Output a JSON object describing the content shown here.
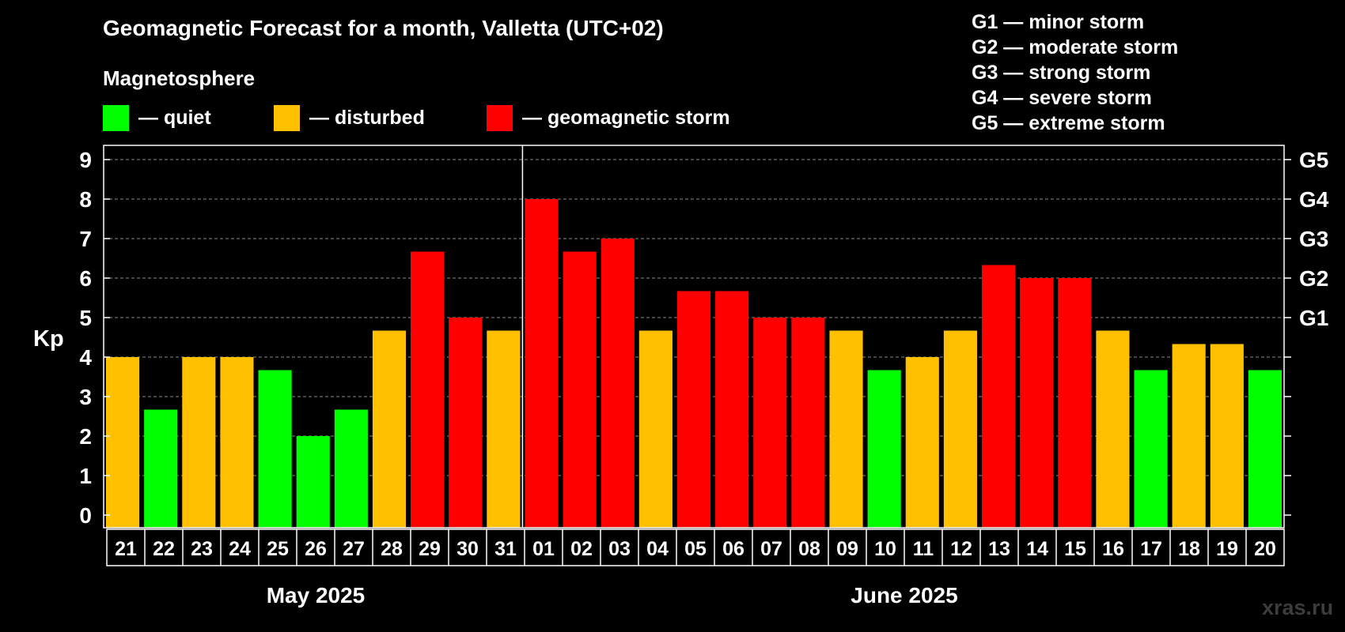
{
  "chart_data": {
    "type": "bar",
    "title": "Geomagnetic Forecast for a month, Valletta (UTC+02)",
    "subtitle": "Magnetosphere",
    "ylabel": "Kp",
    "ylim": [
      0,
      9
    ],
    "yticks": [
      "0",
      "1",
      "2",
      "3",
      "4",
      "5",
      "6",
      "7",
      "8",
      "9"
    ],
    "right_ticks": [
      {
        "kp": 5,
        "label": "G1"
      },
      {
        "kp": 6,
        "label": "G2"
      },
      {
        "kp": 7,
        "label": "G3"
      },
      {
        "kp": 8,
        "label": "G4"
      },
      {
        "kp": 9,
        "label": "G5"
      }
    ],
    "grid": true,
    "categories": [
      "21",
      "22",
      "23",
      "24",
      "25",
      "26",
      "27",
      "28",
      "29",
      "30",
      "31",
      "01",
      "02",
      "03",
      "04",
      "05",
      "06",
      "07",
      "08",
      "09",
      "10",
      "11",
      "12",
      "13",
      "14",
      "15",
      "16",
      "17",
      "18",
      "19",
      "20"
    ],
    "values": [
      4,
      2.67,
      4,
      4,
      3.67,
      2,
      2.67,
      4.67,
      6.67,
      5,
      4.67,
      8,
      6.67,
      7,
      4.67,
      5.67,
      5.67,
      5,
      5,
      4.67,
      3.67,
      4,
      4.67,
      6.33,
      6,
      6,
      4.67,
      3.67,
      4.33,
      4.33,
      3.67
    ],
    "levels": [
      "disturbed",
      "quiet",
      "disturbed",
      "disturbed",
      "quiet",
      "quiet",
      "quiet",
      "disturbed",
      "storm",
      "storm",
      "disturbed",
      "storm",
      "storm",
      "storm",
      "disturbed",
      "storm",
      "storm",
      "storm",
      "storm",
      "disturbed",
      "quiet",
      "disturbed",
      "disturbed",
      "storm",
      "storm",
      "storm",
      "disturbed",
      "quiet",
      "disturbed",
      "disturbed",
      "quiet"
    ],
    "months": [
      {
        "label": "May 2025",
        "days": 11
      },
      {
        "label": "June 2025",
        "days": 20
      }
    ],
    "legend": [
      {
        "key": "quiet",
        "label": "— quiet",
        "color": "#00ff00"
      },
      {
        "key": "disturbed",
        "label": "— disturbed",
        "color": "#ffc000"
      },
      {
        "key": "storm",
        "label": "— geomagnetic storm",
        "color": "#ff0000"
      }
    ],
    "storm_scale": [
      "G1 — minor storm",
      "G2 — moderate storm",
      "G3 — strong storm",
      "G4 — severe storm",
      "G5 — extreme storm"
    ]
  },
  "watermark": "xras.ru"
}
